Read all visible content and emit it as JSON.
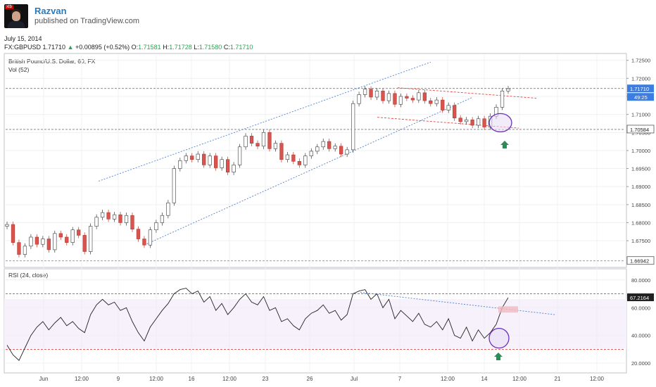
{
  "header": {
    "author": "Razvan",
    "published": "published on TradingView.com",
    "date": "July 15, 2014"
  },
  "ohlc": {
    "symbol": "FX:GBPUSD",
    "last": "1.71710",
    "change": "+0.00895 (+0.52%)",
    "o_label": "O:",
    "o": "1.71581",
    "h_label": "H:",
    "h": "1.71728",
    "l_label": "L:",
    "l": "1.71580",
    "c_label": "C:",
    "c": "1.71710"
  },
  "colors": {
    "up": "#2aa44f",
    "down": "#c0392b",
    "blue_line": "#4a7fd6",
    "red_dashed": "#e0453f",
    "rsi_band": "#f5f0fa",
    "circle": "#6a2fb8",
    "arrow": "#2e8b57"
  },
  "chart_data": [
    {
      "type": "line",
      "title": "British Pound/U.S. Dollar, 60, FX",
      "subtitle": "Vol (52)",
      "ylim": [
        1.668,
        1.7265
      ],
      "y_ticks": [
        "1.72500",
        "1.72000",
        "1.71500",
        "1.71000",
        "1.70500",
        "1.70000",
        "1.69500",
        "1.69000",
        "1.68500",
        "1.68000",
        "1.67500"
      ],
      "x_ticks": [
        "Jun",
        "12:00",
        "9",
        "12:00",
        "16",
        "12:00",
        "23",
        "26",
        "Jul",
        "7",
        "12:00",
        "14",
        "12:00",
        "21",
        "12:00"
      ],
      "price_labels": [
        {
          "value": "1.71710",
          "kind": "last"
        },
        {
          "value": "49:25",
          "kind": "countdown"
        },
        {
          "value": "1.70584",
          "kind": "level"
        },
        {
          "value": "1.66942",
          "kind": "level"
        }
      ],
      "horizontal_levels": [
        1.7172,
        1.70584,
        1.66942
      ],
      "series": [
        {
          "values": [
            1.6795,
            1.6745,
            1.6712,
            1.6735,
            1.676,
            1.674,
            1.6755,
            1.6725,
            1.677,
            1.676,
            1.6745,
            1.678,
            1.6765,
            1.672,
            1.679,
            1.6815,
            1.6828,
            1.681,
            1.6822,
            1.68,
            1.682,
            1.6782,
            1.6755,
            1.6738,
            1.678,
            1.68,
            1.682,
            1.6855,
            1.695,
            1.6972,
            1.6985,
            1.6975,
            1.699,
            1.696,
            1.6985,
            1.6952,
            1.6975,
            1.694,
            1.696,
            1.701,
            1.704,
            1.702,
            1.7012,
            1.705,
            1.7005,
            1.702,
            1.6975,
            1.6988,
            1.697,
            1.696,
            1.6985,
            1.6998,
            1.701,
            1.7025,
            1.7005,
            1.7012,
            1.699,
            1.7002,
            1.713,
            1.7155,
            1.717,
            1.7148,
            1.7165,
            1.7138,
            1.7158,
            1.7128,
            1.715,
            1.7145,
            1.714,
            1.716,
            1.7138,
            1.713,
            1.714,
            1.7112,
            1.7125,
            1.709,
            1.708,
            1.7085,
            1.707,
            1.7088,
            1.7065,
            1.7095,
            1.712,
            1.7165,
            1.7171
          ]
        }
      ],
      "annotations": [
        "ascending channel (blue dotted)",
        "descending channel (red dashed)",
        "circle at 14 Jul low",
        "up arrow"
      ]
    },
    {
      "type": "line",
      "title": "RSI (24, close)",
      "ylim": [
        14,
        87
      ],
      "y_ticks": [
        "80.0000",
        "60.0000",
        "40.0000",
        "20.0000"
      ],
      "levels": [
        70,
        30
      ],
      "last_label": "67.2164",
      "series": [
        {
          "values": [
            33,
            26,
            22,
            31,
            40,
            46,
            50,
            44,
            49,
            53,
            47,
            50,
            45,
            42,
            55,
            62,
            66,
            62,
            64,
            58,
            60,
            50,
            42,
            36,
            46,
            52,
            58,
            63,
            70,
            73,
            74,
            70,
            72,
            64,
            68,
            58,
            63,
            55,
            60,
            66,
            70,
            64,
            62,
            68,
            58,
            60,
            50,
            52,
            47,
            44,
            52,
            56,
            58,
            62,
            56,
            58,
            51,
            55,
            70,
            72,
            73,
            66,
            70,
            60,
            66,
            52,
            58,
            54,
            50,
            56,
            48,
            46,
            50,
            44,
            52,
            40,
            38,
            46,
            36,
            44,
            38,
            42,
            48,
            60,
            67.2164
          ]
        }
      ]
    }
  ]
}
